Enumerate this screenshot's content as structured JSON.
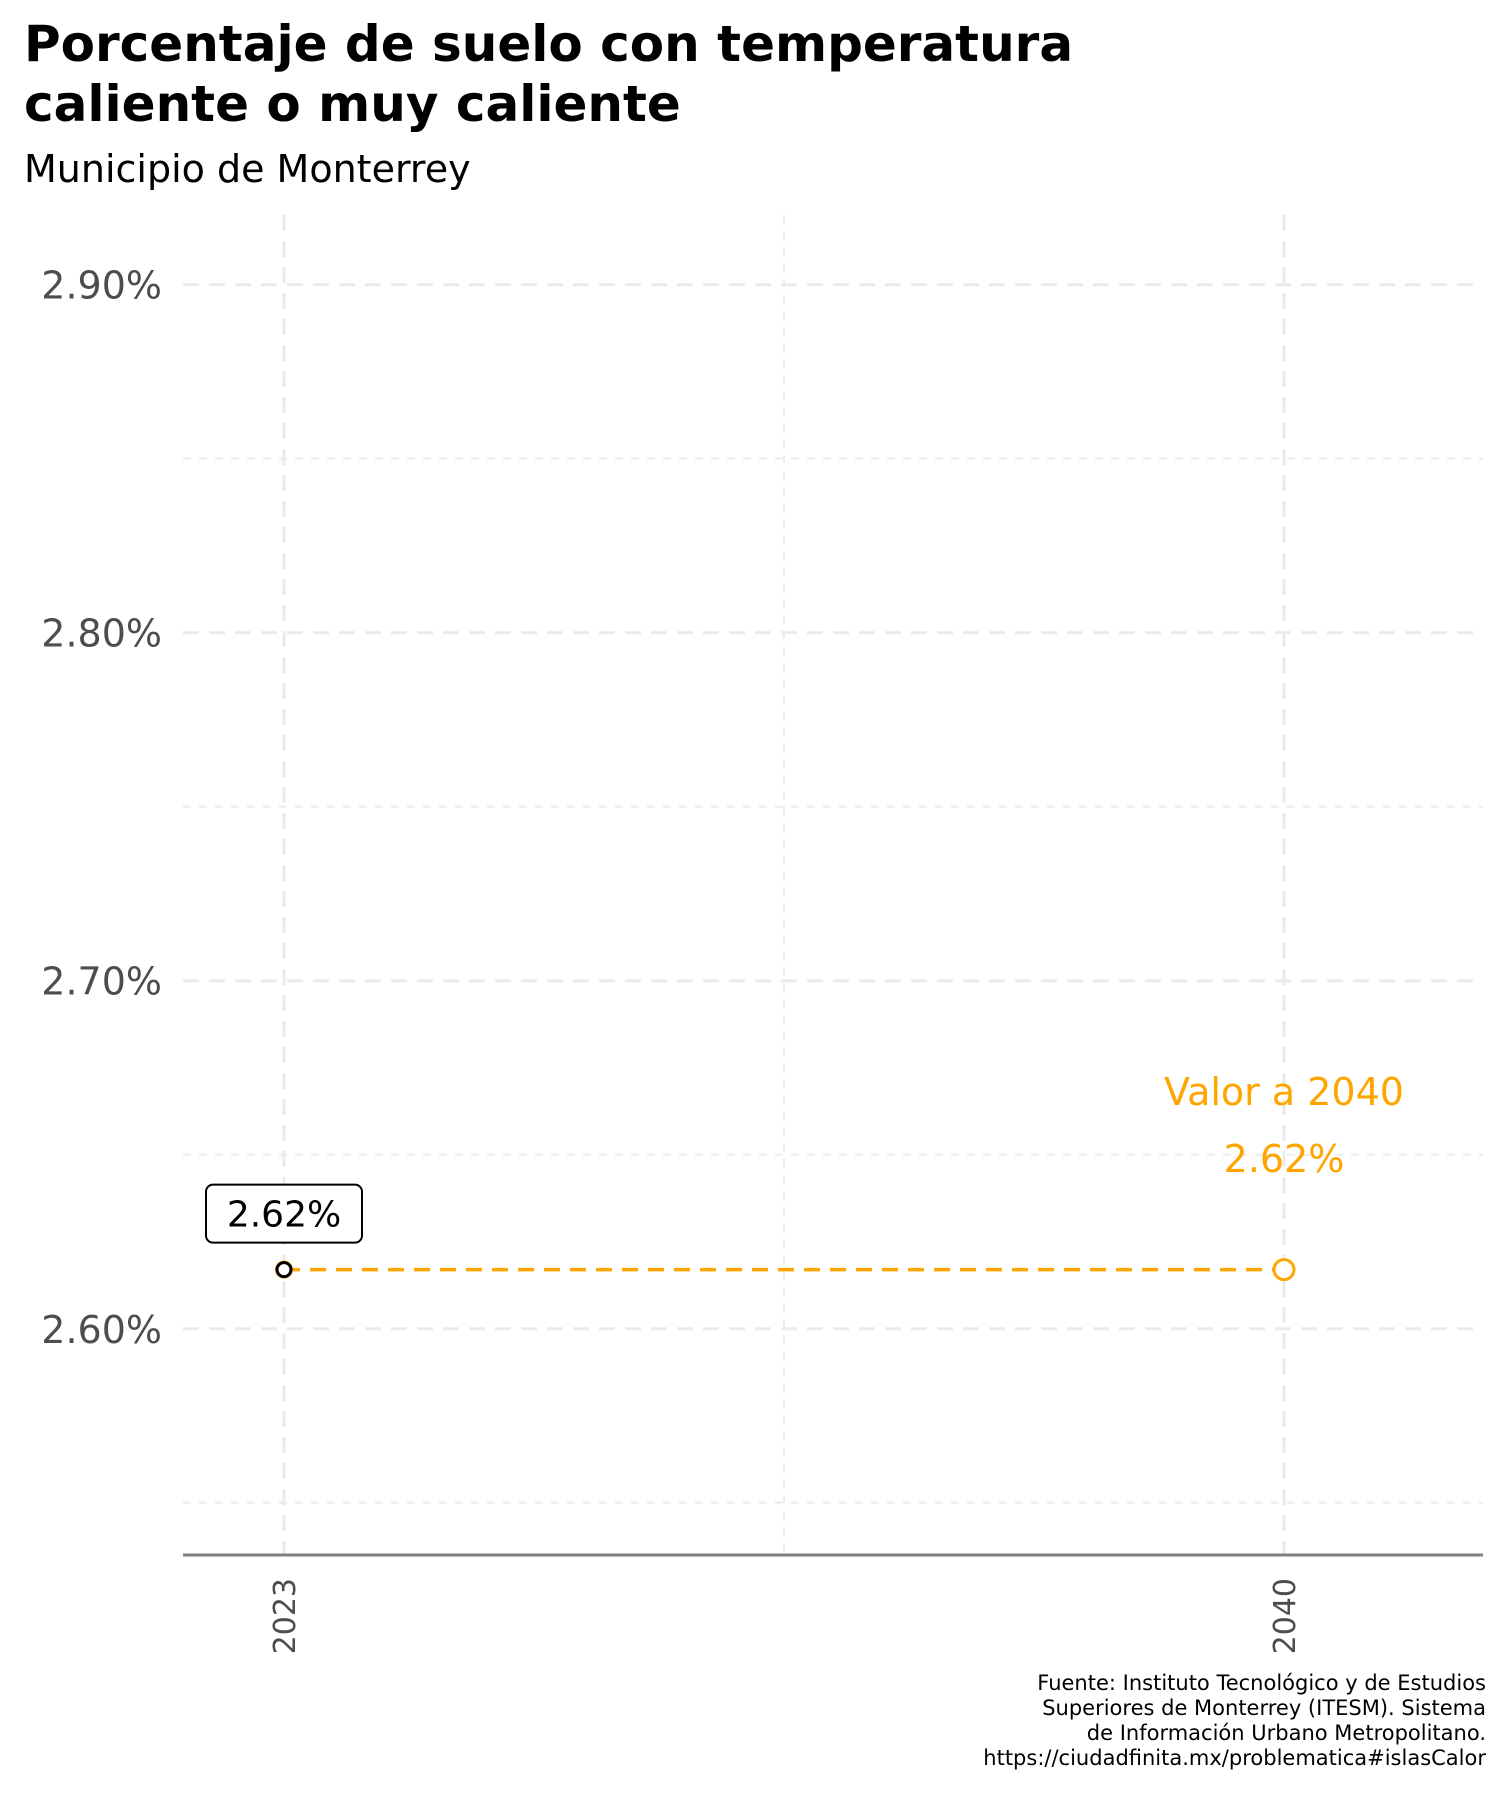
{
  "chart_data": {
    "type": "line",
    "title": [
      "Porcentaje de suelo con temperatura",
      "caliente o muy caliente"
    ],
    "subtitle": "Municipio de Monterrey",
    "x_ticks": [
      "2023",
      "2040"
    ],
    "y_ticks": [
      {
        "value": 2.6,
        "label": "2.60%"
      },
      {
        "value": 2.7,
        "label": "2.70%"
      },
      {
        "value": 2.8,
        "label": "2.80%"
      },
      {
        "value": 2.9,
        "label": "2.90%"
      }
    ],
    "ylim": [
      2.535,
      2.92
    ],
    "grid": true,
    "series": [
      {
        "points": [
          {
            "x": "2023",
            "y": 2.617,
            "label": "2.62%"
          },
          {
            "x": "2040",
            "y": 2.617,
            "label": "2.62%"
          }
        ]
      }
    ],
    "annotation": {
      "x": "2040",
      "text": "Valor a 2040",
      "value_label": "2.62%"
    },
    "caption": [
      "Fuente: Instituto Tecnológico y de Estudios",
      "Superiores de Monterrey (ITESM). Sistema",
      "de Información Urbano Metropolitano.",
      "https://ciudadfinita.mx/problematica#islasCalor"
    ]
  },
  "colors": {
    "accent": "#FFA500",
    "start_point": "#000000",
    "grid": "#EBEBEB",
    "axis": "#7F7F7F",
    "tick_text": "#4D4D4D"
  }
}
